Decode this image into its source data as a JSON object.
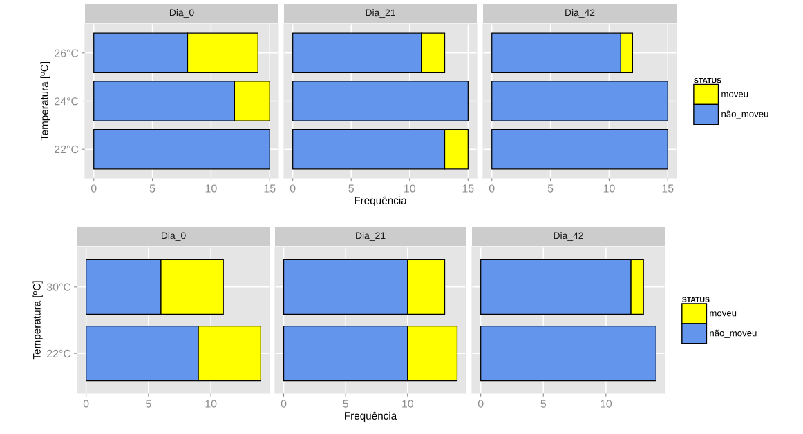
{
  "chart_data": [
    {
      "type": "bar",
      "orientation": "horizontal",
      "stacked": true,
      "title": "Dia_0",
      "ylabel": "Temperatura [ºC]",
      "categories": [
        "26°C",
        "24°C",
        "22°C"
      ],
      "series": [
        {
          "color": "#6495ed",
          "values": [
            8,
            12,
            15
          ]
        },
        {
          "color": "#ffff00",
          "values": [
            6,
            3,
            null
          ]
        }
      ],
      "xlim": [
        -0.75,
        15.75
      ],
      "xticks": [
        0,
        5,
        10,
        15
      ],
      "grid": true
    },
    {
      "type": "bar",
      "orientation": "horizontal",
      "stacked": true,
      "title": "Dia_21",
      "xlabel": "Frequência",
      "categories": [
        null,
        null,
        null
      ],
      "series": [
        {
          "color": "#6495ed",
          "values": [
            11,
            15,
            13
          ]
        },
        {
          "color": "#ffff00",
          "values": [
            2,
            null,
            2
          ]
        }
      ],
      "xlim": [
        -0.75,
        15.75
      ],
      "xticks": [
        0,
        5,
        10,
        15
      ],
      "grid": true,
      "tick_labels": "x"
    },
    {
      "type": "bar",
      "orientation": "horizontal",
      "stacked": true,
      "title": "Dia_42",
      "legend_title": "STATUS",
      "categories": [
        null,
        null,
        null
      ],
      "series": [
        {
          "name": "não_moveu",
          "color": "#6495ed",
          "values": [
            11,
            15,
            15
          ]
        },
        {
          "name": "moveu",
          "color": "#ffff00",
          "values": [
            1,
            null,
            null
          ]
        }
      ],
      "xlim": [
        -0.75,
        15.75
      ],
      "xticks": [
        0,
        5,
        10,
        15
      ],
      "grid": true,
      "tick_labels": "x",
      "legend": "right"
    },
    {
      "type": "bar",
      "orientation": "horizontal",
      "stacked": true,
      "title": "Dia_0",
      "ylabel": "Temperatura [ºC]",
      "categories": [
        "30°C",
        "22°C"
      ],
      "series": [
        {
          "color": "#6495ed",
          "values": [
            6,
            9
          ]
        },
        {
          "color": "#ffff00",
          "values": [
            5,
            5
          ]
        }
      ],
      "xlim": [
        -0.7,
        14.7
      ],
      "xticks": [
        0,
        5,
        10
      ],
      "grid": true
    },
    {
      "type": "bar",
      "orientation": "horizontal",
      "stacked": true,
      "title": "Dia_21",
      "xlabel": "Frequência",
      "categories": [
        null,
        null
      ],
      "series": [
        {
          "color": "#6495ed",
          "values": [
            10,
            10
          ]
        },
        {
          "color": "#ffff00",
          "values": [
            3,
            4
          ]
        }
      ],
      "xlim": [
        -0.7,
        14.7
      ],
      "xticks": [
        0,
        5,
        10
      ],
      "grid": true,
      "tick_labels": "x"
    },
    {
      "type": "bar",
      "orientation": "horizontal",
      "stacked": true,
      "title": "Dia_42",
      "legend_title": "STATUS",
      "categories": [
        null,
        null
      ],
      "series": [
        {
          "name": "não_moveu",
          "color": "#6495ed",
          "values": [
            12,
            14
          ]
        },
        {
          "name": "moveu",
          "color": "#ffff00",
          "values": [
            1,
            null
          ]
        }
      ],
      "xlim": [
        -0.7,
        14.7
      ],
      "xticks": [
        0,
        5,
        10
      ],
      "grid": true,
      "tick_labels": "x",
      "legend": "right"
    }
  ]
}
